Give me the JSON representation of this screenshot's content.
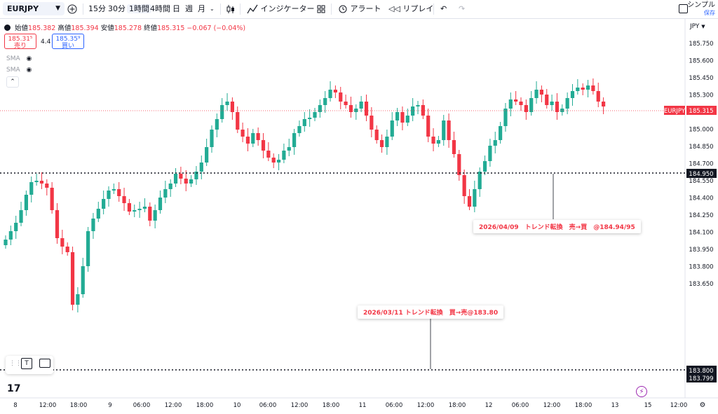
{
  "toolbar": {
    "symbol": "EURJPY",
    "intervals": [
      "15分",
      "30分",
      "1時間",
      "4時間",
      "日",
      "週",
      "月"
    ],
    "active_interval": "1時間",
    "indicators_label": "インジケーター",
    "alert_label": "アラート",
    "replay_label": "リプレイ",
    "layout_name": "シンプル",
    "save_label": "保存"
  },
  "legend": {
    "open_label": "始値",
    "open": "185.382",
    "high_label": "高値",
    "high": "185.394",
    "low_label": "安値",
    "low": "185.278",
    "close_label": "終値",
    "close": "185.315",
    "change": "−0.067 (−0.04%)"
  },
  "quote": {
    "sell_price": "185.31⁵",
    "sell_label": "売り",
    "spread": "4.4",
    "buy_price": "185.35⁹",
    "buy_label": "買い"
  },
  "indicators": [
    "SMA",
    "SMA"
  ],
  "currency": "JPY",
  "price_axis": {
    "ticks": [
      "185.750",
      "185.600",
      "185.450",
      "185.300",
      "185.150",
      "185.000",
      "184.850",
      "184.700",
      "184.550",
      "184.400",
      "184.250",
      "184.100",
      "183.950",
      "183.800",
      "183.650"
    ],
    "tick_values": [
      185.75,
      185.6,
      185.45,
      185.3,
      185.15,
      185.0,
      184.85,
      184.7,
      184.55,
      184.4,
      184.25,
      184.1,
      183.95,
      183.8,
      183.65
    ],
    "current_label": "EURJPY",
    "current_price": "185.315",
    "line1_price": "184.950",
    "line2_price_a": "183.800",
    "line2_price_b": "183.799"
  },
  "time_axis": [
    "8",
    "12:00",
    "18:00",
    "9",
    "06:00",
    "12:00",
    "18:00",
    "10",
    "06:00",
    "12:00",
    "18:00",
    "11",
    "06:00",
    "12:00",
    "18:00",
    "12",
    "06:00",
    "12:00",
    "18:00",
    "13",
    "06:00",
    "12:00",
    "18:00",
    "15",
    "12:00"
  ],
  "annotations": [
    {
      "text": "2026/04/09　トレンド転換　売→買　@184.94/95"
    },
    {
      "text": "2026/03/11 トレンド転換　買→売@183.80"
    }
  ],
  "colors": {
    "up": "#22ab94",
    "down": "#f23645",
    "accent": "#2962ff",
    "bg": "#ffffff"
  }
}
